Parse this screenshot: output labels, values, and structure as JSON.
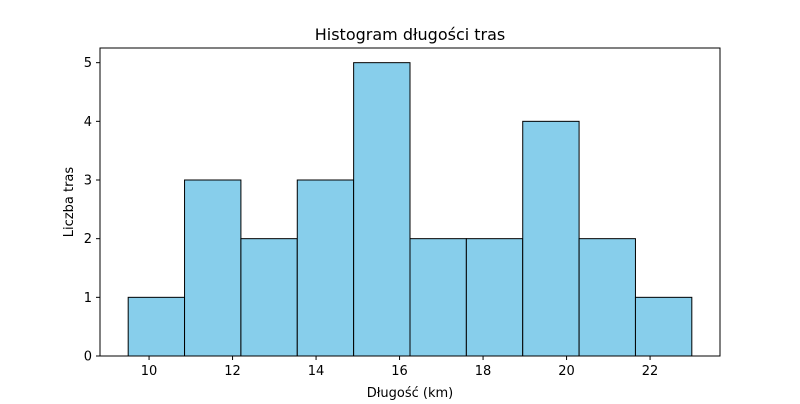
{
  "chart_data": {
    "type": "bar",
    "title": "Histogram długości tras",
    "xlabel": "Długość (km)",
    "ylabel": "Liczba tras",
    "bins": [
      [
        9.5,
        10.85
      ],
      [
        10.85,
        12.2
      ],
      [
        12.2,
        13.55
      ],
      [
        13.55,
        14.9
      ],
      [
        14.9,
        16.25
      ],
      [
        16.25,
        17.6
      ],
      [
        17.6,
        18.95
      ],
      [
        18.95,
        20.3
      ],
      [
        20.3,
        21.65
      ],
      [
        21.65,
        23.0
      ]
    ],
    "values": [
      1,
      3,
      2,
      3,
      5,
      2,
      2,
      4,
      2,
      1
    ],
    "xlim": [
      8.825,
      23.675
    ],
    "ylim": [
      0,
      5.25
    ],
    "xticks": [
      10,
      12,
      14,
      16,
      18,
      20,
      22
    ],
    "yticks": [
      0,
      1,
      2,
      3,
      4,
      5
    ],
    "bar_color": "#87ceeb",
    "edge_color": "#000000",
    "grid": false,
    "legend": "none"
  }
}
